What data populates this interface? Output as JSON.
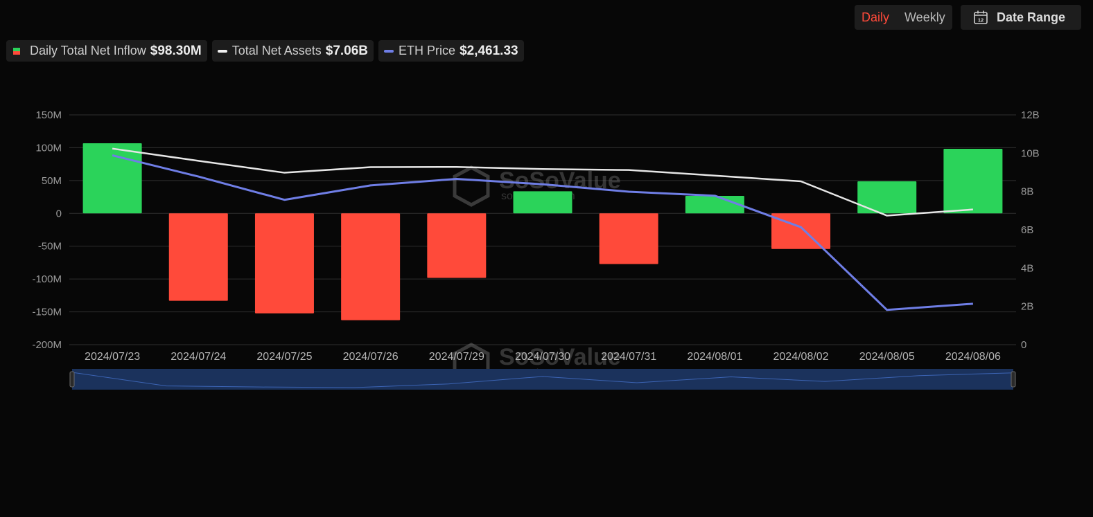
{
  "controls": {
    "daily_label": "Daily",
    "weekly_label": "Weekly",
    "date_range_label": "Date Range",
    "calendar_day": "12"
  },
  "legend": [
    {
      "label": "Daily Total Net Inflow",
      "value": "$98.30M"
    },
    {
      "label": "Total Net Assets",
      "value": "$7.06B"
    },
    {
      "label": "ETH Price",
      "value": "$2,461.33"
    }
  ],
  "watermark": {
    "brand": "SoSoValue",
    "url": "sosovalue.com"
  },
  "colors": {
    "positive": "#2bd35a",
    "negative": "#ff4a3a",
    "net_assets_line": "#e6e6e6",
    "eth_price_line": "#6f7ee6",
    "active_toggle": "#ff4a3a"
  },
  "chart_data": {
    "type": "bar",
    "categories": [
      "2024/07/23",
      "2024/07/24",
      "2024/07/25",
      "2024/07/26",
      "2024/07/29",
      "2024/07/30",
      "2024/07/31",
      "2024/08/01",
      "2024/08/02",
      "2024/08/05",
      "2024/08/06"
    ],
    "series": [
      {
        "name": "Daily Total Net Inflow",
        "type": "bar",
        "axis": "left",
        "values": [
          106.8,
          -133.2,
          -152.3,
          -162.7,
          -98.3,
          33.7,
          -77.2,
          26.7,
          -54.3,
          48.8,
          98.3
        ]
      },
      {
        "name": "Total Net Assets",
        "type": "line",
        "axis": "right",
        "values": [
          10.24,
          9.6,
          8.98,
          9.27,
          9.28,
          9.17,
          9.12,
          8.83,
          8.53,
          6.74,
          7.06
        ]
      },
      {
        "name": "ETH Price",
        "type": "line",
        "axis": "right_scaled",
        "values": [
          3482,
          3336,
          3176,
          3275,
          3320,
          3283,
          3232,
          3204,
          2988,
          2419,
          2461.33
        ]
      }
    ],
    "y_left": {
      "ticks": [
        "150M",
        "100M",
        "50M",
        "0",
        "-50M",
        "-100M",
        "-150M",
        "-200M"
      ],
      "range": [
        -200,
        150
      ]
    },
    "y_right": {
      "ticks": [
        "12B",
        "10B",
        "8B",
        "6B",
        "4B",
        "2B",
        "0"
      ],
      "range": [
        0,
        12
      ]
    },
    "grid": true,
    "legend_position": "top-left"
  }
}
